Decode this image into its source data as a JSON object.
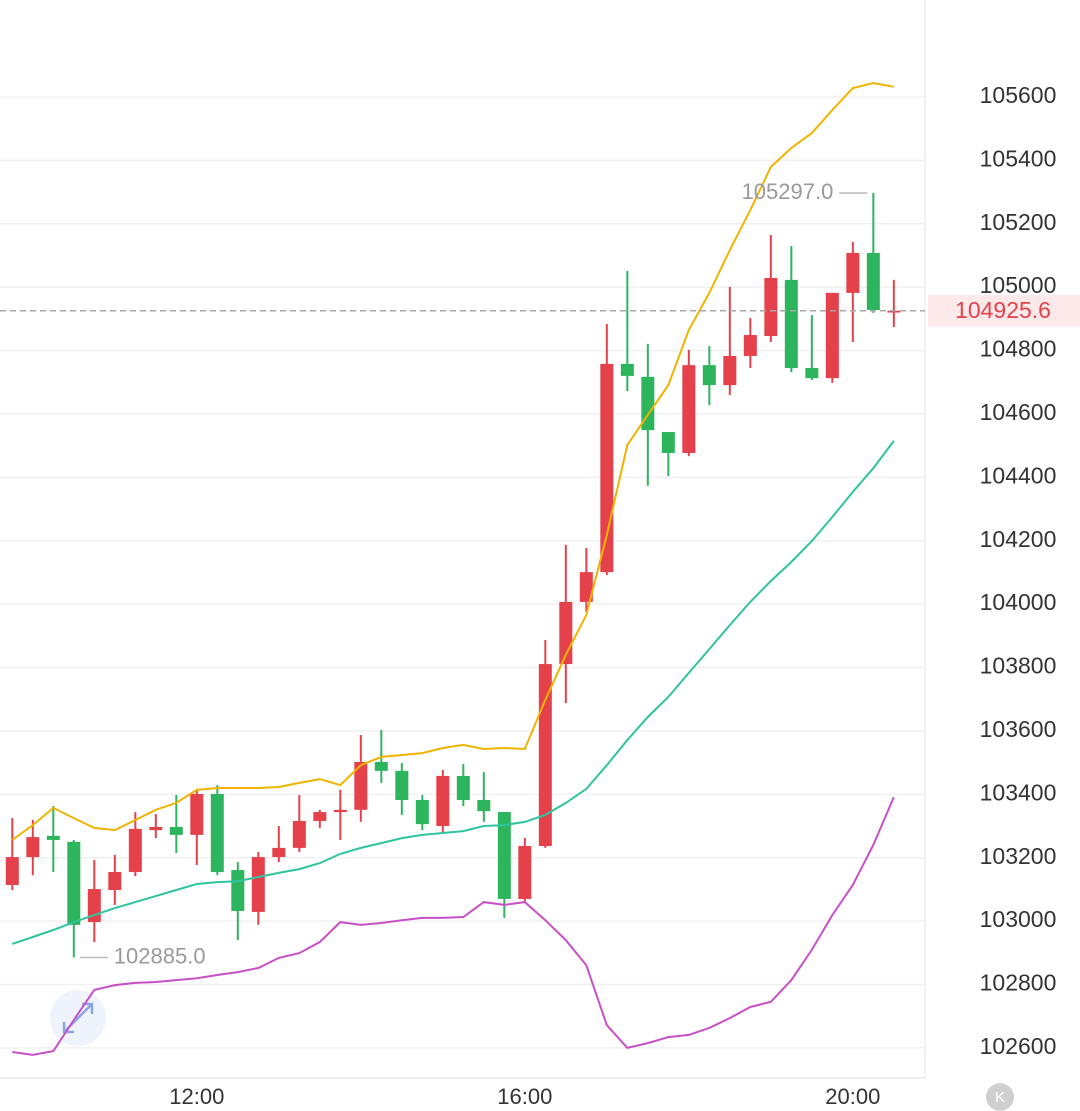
{
  "chart_data": {
    "type": "candlestick",
    "x": [
      9.75,
      10,
      10.25,
      10.5,
      10.75,
      11,
      11.25,
      11.5,
      11.75,
      12,
      12.25,
      12.5,
      12.75,
      13,
      13.25,
      13.5,
      13.75,
      14,
      14.25,
      14.5,
      14.75,
      15,
      15.25,
      15.5,
      15.75,
      16,
      16.25,
      16.5,
      16.75,
      17,
      17.25,
      17.5,
      17.75,
      18,
      18.25,
      18.5,
      18.75,
      19,
      19.25,
      19.5,
      19.75,
      20,
      20.25,
      20.5
    ],
    "open": [
      103114,
      103202,
      103269,
      103250,
      102997,
      103098,
      103155,
      103287,
      103297,
      103272,
      103401,
      103161,
      103029,
      103202,
      103231,
      103316,
      103344,
      103351,
      103502,
      103474,
      103382,
      103300,
      103458,
      103382,
      103344,
      103070,
      103237,
      103811,
      104007,
      104101,
      104758,
      104717,
      104543,
      104477,
      104754,
      104691,
      104783,
      104846,
      105023,
      104745,
      104713,
      104982,
      105108,
      104920
    ],
    "high": [
      103325,
      103319,
      103363,
      103256,
      103193,
      103209,
      103344,
      103338,
      103398,
      103414,
      103429,
      103186,
      103218,
      103300,
      103398,
      103351,
      103414,
      103587,
      103603,
      103499,
      103398,
      103477,
      103496,
      103470,
      103344,
      103262,
      103887,
      104187,
      104177,
      104884,
      105051,
      104821,
      104543,
      104802,
      104814,
      105001,
      104903,
      105165,
      105130,
      104912,
      104982,
      105143,
      105297,
      105023
    ],
    "low": [
      103098,
      103145,
      103155,
      102885,
      102934,
      103051,
      103142,
      103262,
      103215,
      103177,
      103145,
      102940,
      102988,
      103186,
      103218,
      103294,
      103256,
      103313,
      103436,
      103335,
      103287,
      103281,
      103363,
      103313,
      103010,
      103060,
      103231,
      103688,
      103975,
      104092,
      104672,
      104373,
      104404,
      104467,
      104628,
      104660,
      104745,
      104827,
      104732,
      104707,
      104698,
      104827,
      104919,
      104874
    ],
    "close": [
      103202,
      103265,
      103256,
      102988,
      103101,
      103155,
      103291,
      103297,
      103272,
      103401,
      103155,
      103032,
      103202,
      103231,
      103316,
      103344,
      103351,
      103502,
      103474,
      103382,
      103306,
      103458,
      103382,
      103347,
      103070,
      103237,
      103811,
      104007,
      104101,
      104758,
      104720,
      104549,
      104477,
      104754,
      104691,
      104783,
      104849,
      105029,
      104745,
      104713,
      104982,
      105108,
      104928,
      104925.6
    ],
    "up_color": "#e5414b",
    "down_color": "#2db55d",
    "bands": [
      {
        "color": "#f0b400",
        "values": [
          103256,
          103303,
          103357,
          103325,
          103294,
          103287,
          103319,
          103351,
          103373,
          103414,
          103420,
          103420,
          103420,
          103423,
          103436,
          103448,
          103429,
          103492,
          103518,
          103524,
          103530,
          103546,
          103556,
          103543,
          103546,
          103543,
          103698,
          103840,
          103966,
          104218,
          104502,
          104597,
          104691,
          104865,
          104982,
          105117,
          105243,
          105379,
          105439,
          105486,
          105559,
          105628,
          105644,
          105632
        ]
      },
      {
        "color": "#2ec4a0",
        "values": [
          102928,
          102950,
          102972,
          102997,
          103019,
          103041,
          103060,
          103079,
          103098,
          103117,
          103123,
          103126,
          103139,
          103152,
          103164,
          103183,
          103212,
          103231,
          103246,
          103262,
          103272,
          103278,
          103284,
          103300,
          103303,
          103313,
          103335,
          103373,
          103417,
          103492,
          103571,
          103644,
          103707,
          103783,
          103858,
          103934,
          104007,
          104073,
          104133,
          104199,
          104275,
          104354,
          104429,
          104515
        ]
      },
      {
        "color": "#c94fc6",
        "values": [
          102587,
          102578,
          102590,
          102688,
          102783,
          102798,
          102805,
          102808,
          102814,
          102820,
          102830,
          102839,
          102852,
          102884,
          102899,
          102934,
          102997,
          102988,
          102994,
          103003,
          103010,
          103010,
          103013,
          103060,
          103051,
          103060,
          103003,
          102940,
          102861,
          102672,
          102600,
          102615,
          102634,
          102641,
          102663,
          102694,
          102729,
          102745,
          102814,
          102909,
          103019,
          103114,
          103240,
          103391
        ]
      }
    ],
    "xlim": [
      9.6,
      20.88
    ],
    "xticks": [
      {
        "value": 12,
        "label": "12:00"
      },
      {
        "value": 16,
        "label": "16:00"
      },
      {
        "value": 20,
        "label": "20:00"
      }
    ],
    "ylim": [
      102505,
      105906
    ],
    "yticks": [
      102600,
      102800,
      103000,
      103200,
      103400,
      103600,
      103800,
      104000,
      104200,
      104400,
      104600,
      104800,
      105000,
      105200,
      105400,
      105600
    ],
    "grid": true,
    "max_annotation": {
      "value": 105297,
      "label": "105297.0"
    },
    "min_annotation": {
      "value": 102885,
      "label": "102885.0"
    }
  },
  "k_button": "K"
}
